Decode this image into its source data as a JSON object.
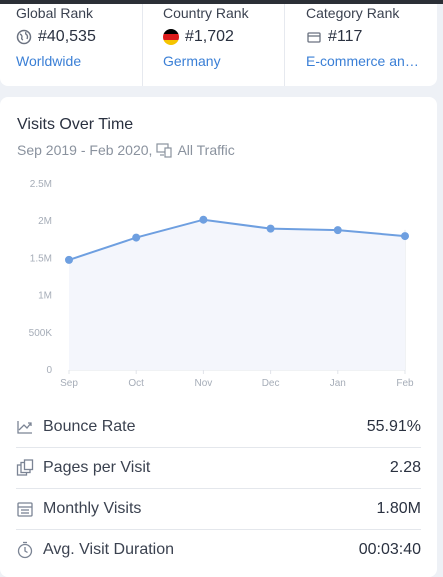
{
  "ranks": {
    "global": {
      "label": "Global Rank",
      "value": "#40,535",
      "link": "Worldwide"
    },
    "country": {
      "label": "Country Rank",
      "value": "#1,702",
      "link": "Germany"
    },
    "category": {
      "label": "Category Rank",
      "value": "#117",
      "link": "E-commerce and ..."
    }
  },
  "visits": {
    "title": "Visits Over Time",
    "date_range": "Sep 2019 - Feb 2020,",
    "traffic": "All Traffic"
  },
  "chart_data": {
    "type": "area",
    "categories": [
      "Sep",
      "Oct",
      "Nov",
      "Dec",
      "Jan",
      "Feb"
    ],
    "series": [
      {
        "values": [
          1480000,
          1780000,
          2020000,
          1900000,
          1880000,
          1800000
        ]
      }
    ],
    "yticks": [
      "0",
      "500K",
      "1M",
      "1.5M",
      "2M",
      "2.5M"
    ],
    "ylim": [
      0,
      2500000
    ],
    "color": "#6e9fe0",
    "fill": "#f4f6fc"
  },
  "metrics": [
    {
      "icon": "bounce-rate-icon",
      "label": "Bounce Rate",
      "value": "55.91%"
    },
    {
      "icon": "pages-per-visit-icon",
      "label": "Pages per Visit",
      "value": "2.28"
    },
    {
      "icon": "monthly-visits-icon",
      "label": "Monthly Visits",
      "value": "1.80M"
    },
    {
      "icon": "stopwatch-icon",
      "label": "Avg. Visit Duration",
      "value": "00:03:40"
    }
  ]
}
